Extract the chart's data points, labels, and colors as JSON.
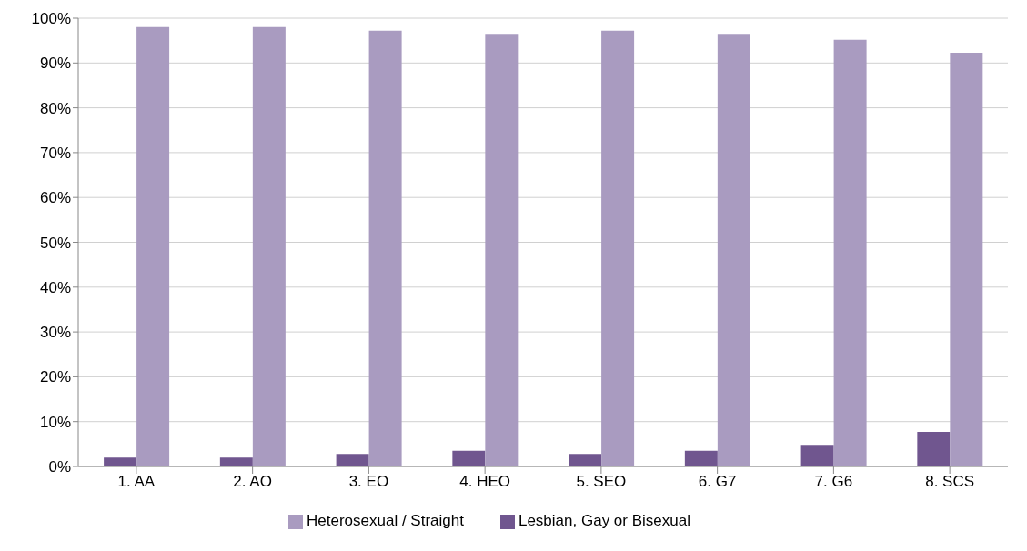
{
  "chart_data": {
    "type": "bar",
    "categories": [
      "1. AA",
      "2. AO",
      "3. EO",
      "4. HEO",
      "5. SEO",
      "6. G7",
      "7. G6",
      "8. SCS"
    ],
    "series": [
      {
        "name": "Lesbian, Gay or Bisexual",
        "color": "#70568f",
        "values": [
          2,
          2,
          2.8,
          3.5,
          2.8,
          3.5,
          4.8,
          7.7
        ]
      },
      {
        "name": "Heterosexual / Straight",
        "color": "#a99bc0",
        "values": [
          98,
          98,
          97.2,
          96.5,
          97.2,
          96.5,
          95.2,
          92.3
        ]
      }
    ],
    "ylim": [
      0,
      100
    ],
    "yticks": [
      {
        "value": 0,
        "label": "0%"
      },
      {
        "value": 10,
        "label": "10%"
      },
      {
        "value": 20,
        "label": "20%"
      },
      {
        "value": 30,
        "label": "30%"
      },
      {
        "value": 40,
        "label": "40%"
      },
      {
        "value": 50,
        "label": "50%"
      },
      {
        "value": 60,
        "label": "60%"
      },
      {
        "value": 70,
        "label": "70%"
      },
      {
        "value": 80,
        "label": "80%"
      },
      {
        "value": 90,
        "label": "90%"
      },
      {
        "value": 100,
        "label": "100%"
      }
    ],
    "grid": "y",
    "legend": "bottom"
  }
}
